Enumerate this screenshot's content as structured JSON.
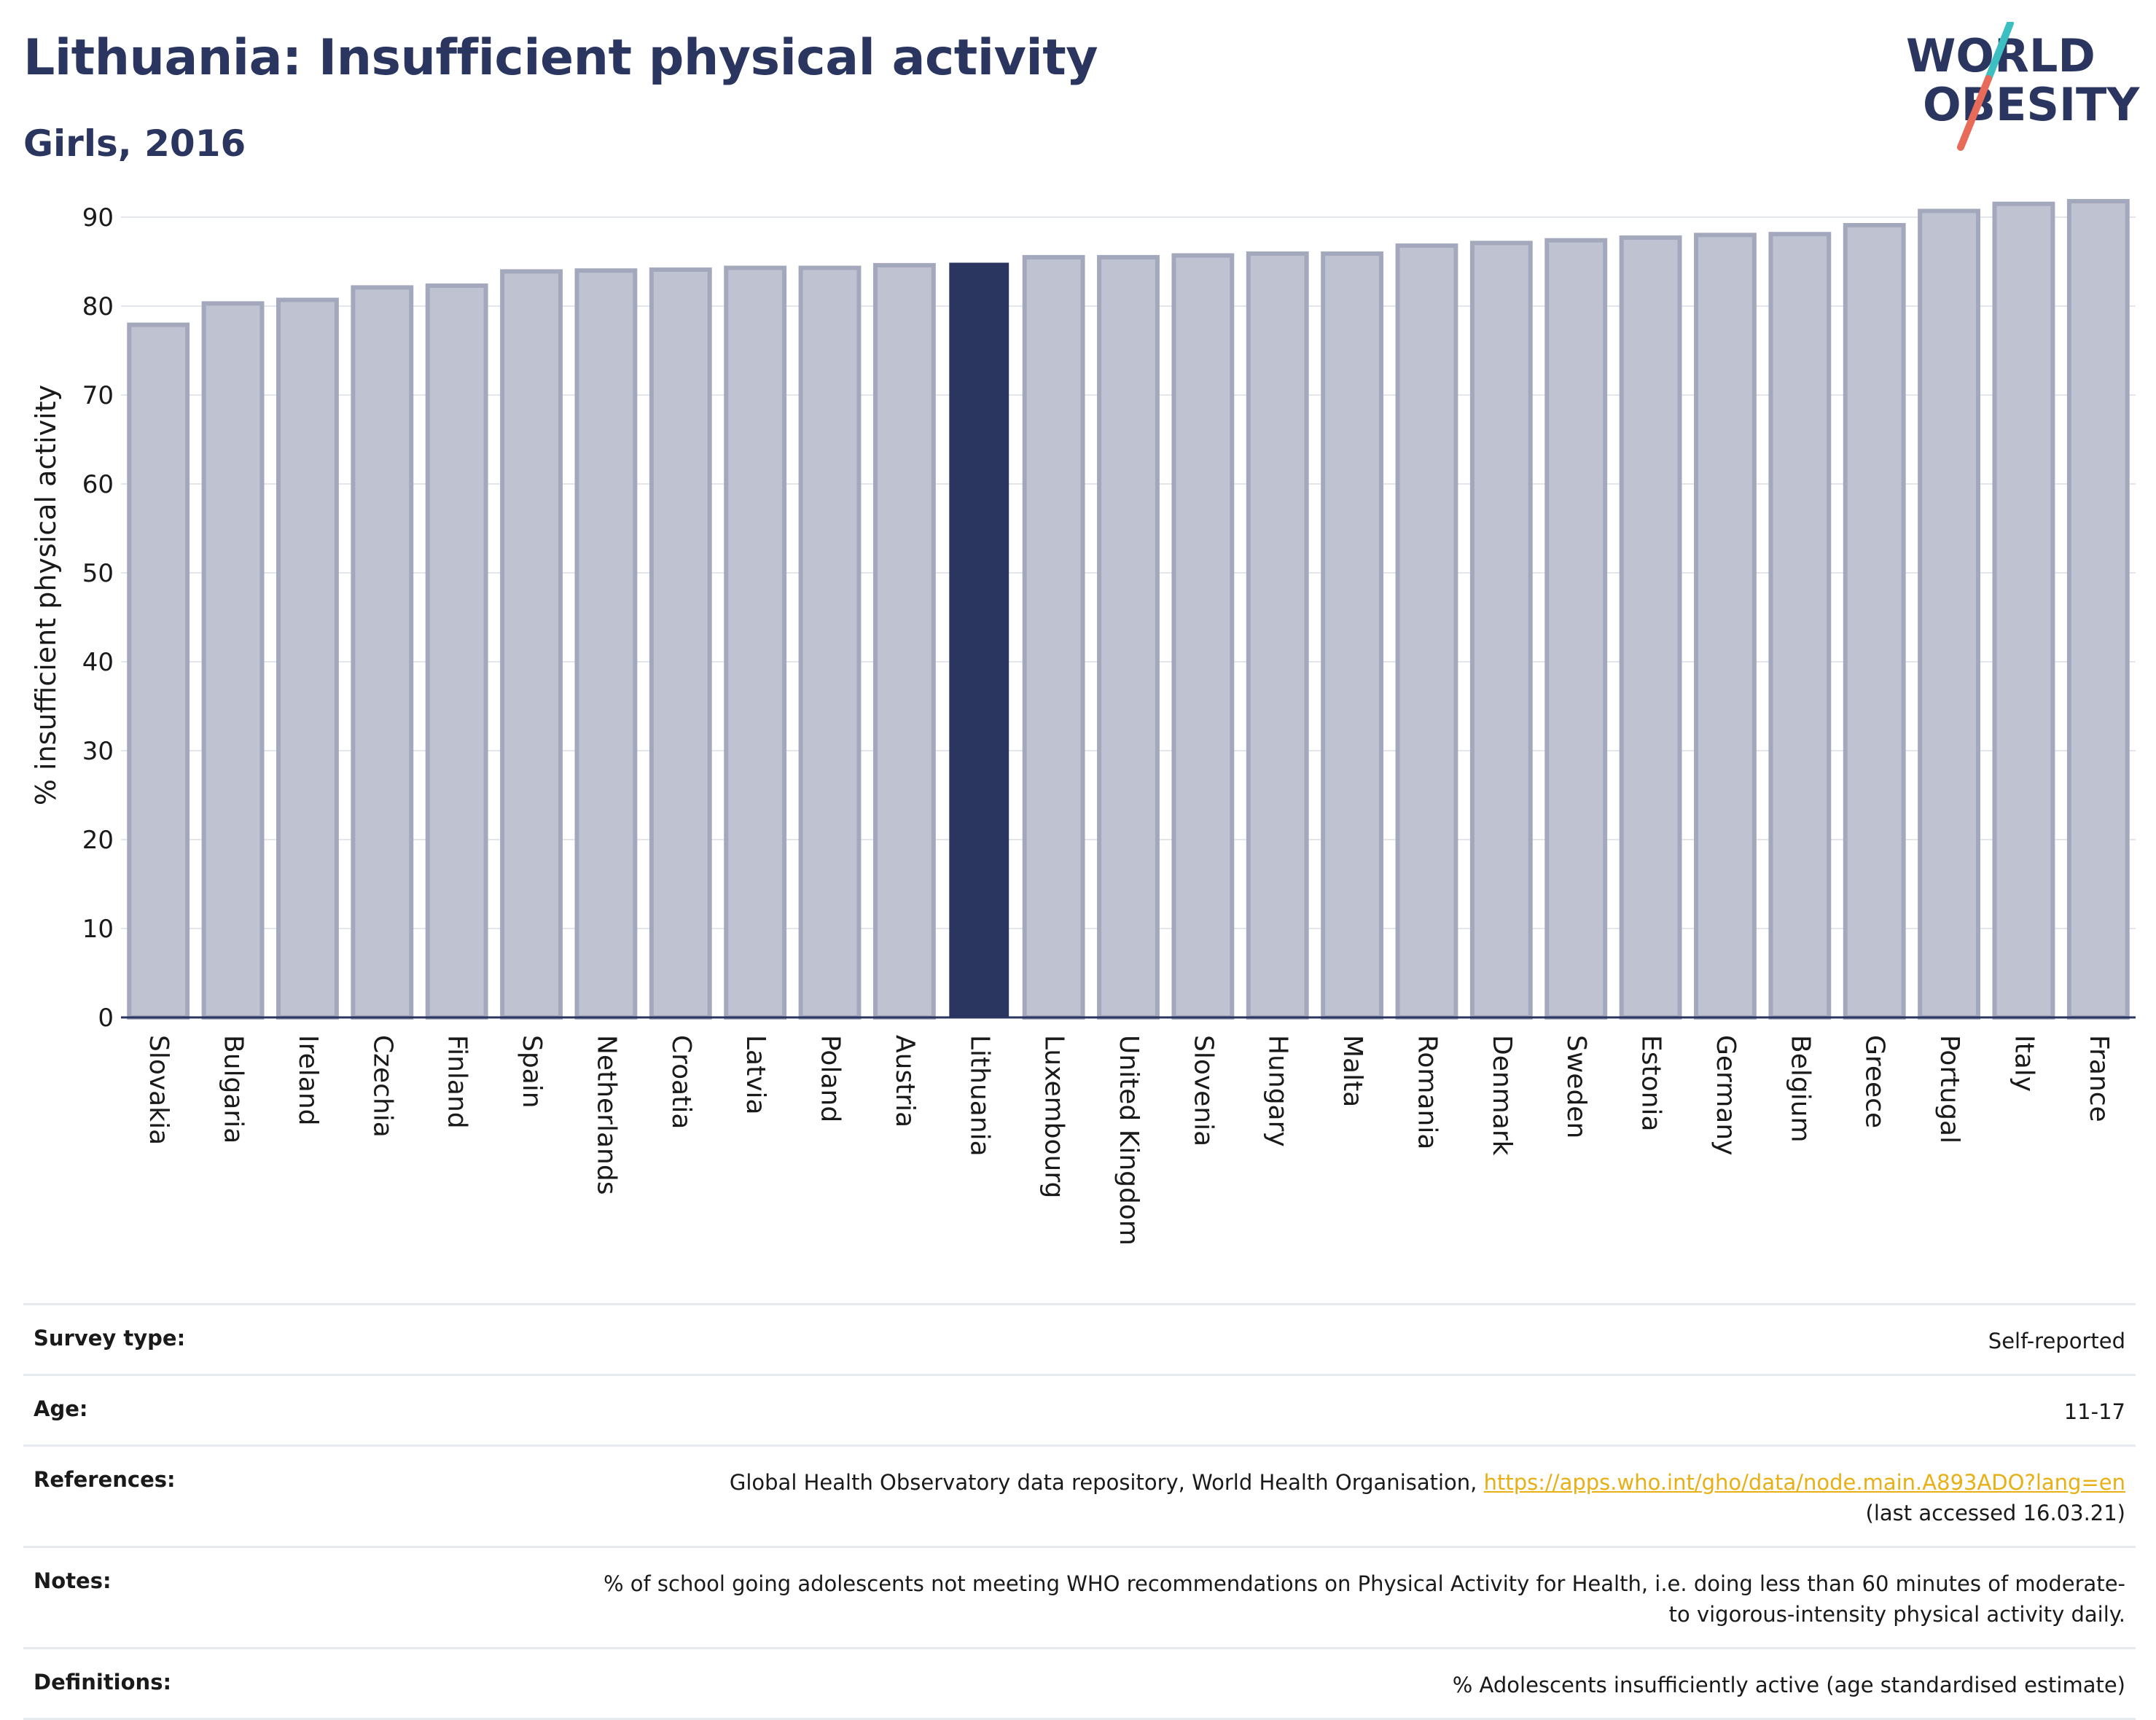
{
  "header": {
    "title": "Lithuania: Insufficient physical activity",
    "subtitle": "Girls, 2016"
  },
  "logo": {
    "line1": "WORLD",
    "line2": "OBESITY"
  },
  "colors": {
    "highlight_bar": "#2a3560",
    "bar_fill": "#bfc2d1",
    "bar_stroke": "#a3a8bd",
    "title": "#2a3560",
    "link": "#e8b015",
    "logo_teal": "#3bbfc0",
    "logo_coral": "#e86a58"
  },
  "chart_data": {
    "type": "bar",
    "ylabel": "% insufficient physical activity",
    "ylim": [
      0,
      95
    ],
    "yticks": [
      0,
      10,
      20,
      30,
      40,
      50,
      60,
      70,
      80,
      90
    ],
    "grid": true,
    "highlight": "Lithuania",
    "categories": [
      "Slovakia",
      "Bulgaria",
      "Ireland",
      "Czechia",
      "Finland",
      "Spain",
      "Netherlands",
      "Croatia",
      "Latvia",
      "Poland",
      "Austria",
      "Lithuania",
      "Luxembourg",
      "United Kingdom",
      "Slovenia",
      "Hungary",
      "Malta",
      "Romania",
      "Denmark",
      "Sweden",
      "Estonia",
      "Germany",
      "Belgium",
      "Greece",
      "Portugal",
      "Italy",
      "France"
    ],
    "values": [
      77.9,
      80.3,
      80.7,
      82.1,
      82.3,
      83.9,
      84.0,
      84.1,
      84.3,
      84.3,
      84.6,
      84.8,
      85.5,
      85.5,
      85.7,
      85.9,
      85.9,
      86.8,
      87.1,
      87.4,
      87.7,
      88.0,
      88.1,
      89.1,
      90.7,
      91.5,
      91.8
    ]
  },
  "info": [
    {
      "label": "Survey type:",
      "value": "Self-reported"
    },
    {
      "label": "Age:",
      "value": "11-17"
    },
    {
      "label": "References:",
      "value": "Global Health Observatory data repository, World Health Organisation,",
      "link": "https://apps.who.int/gho/data/node.main.A893ADO?lang=en",
      "value2": "(last accessed 16.03.21)"
    },
    {
      "label": "Notes:",
      "value": "% of school going adolescents not meeting WHO recommendations on Physical Activity for Health, i.e. doing less than 60 minutes of moderate- to vigorous-intensity physical activity daily."
    },
    {
      "label": "Definitions:",
      "value": "% Adolescents insufficiently active (age standardised estimate)"
    }
  ]
}
